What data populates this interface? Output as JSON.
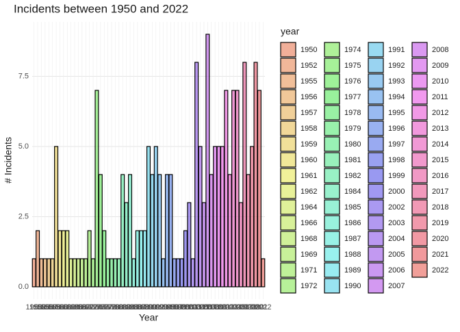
{
  "chart_data": {
    "type": "bar",
    "title": "Incidents between 1950 and 2022",
    "x_label": "Year",
    "y_label": "# Incidents",
    "legend_title": "year",
    "categories": [
      "1950",
      "1952",
      "1955",
      "1956",
      "1957",
      "1958",
      "1959",
      "1960",
      "1961",
      "1962",
      "1964",
      "1966",
      "1968",
      "1969",
      "1971",
      "1972",
      "1974",
      "1975",
      "1976",
      "1977",
      "1978",
      "1979",
      "1980",
      "1981",
      "1982",
      "1984",
      "1985",
      "1986",
      "1987",
      "1988",
      "1989",
      "1990",
      "1991",
      "1992",
      "1993",
      "1994",
      "1995",
      "1996",
      "1997",
      "1998",
      "1999",
      "2000",
      "2002",
      "2003",
      "2004",
      "2005",
      "2006",
      "2007",
      "2008",
      "2009",
      "2010",
      "2011",
      "2012",
      "2013",
      "2014",
      "2015",
      "2016",
      "2017",
      "2018",
      "2019",
      "2020",
      "2021",
      "2022"
    ],
    "values": [
      1,
      2,
      1,
      1,
      1,
      1,
      5,
      2,
      2,
      2,
      1,
      1,
      1,
      1,
      1,
      2,
      1,
      7,
      4,
      2,
      1,
      1,
      1,
      1,
      4,
      3,
      4,
      1,
      2,
      2,
      2,
      5,
      4,
      5,
      4,
      1,
      4,
      4,
      1,
      1,
      1,
      2,
      3,
      1,
      8,
      5,
      3,
      9,
      4,
      5,
      5,
      5,
      7,
      4,
      7,
      7,
      3,
      8,
      4,
      5,
      8,
      7,
      1
    ],
    "ylim": [
      -0.44,
      9.44
    ],
    "yticks": [
      {
        "value": 0,
        "label": "0.0"
      },
      2.5,
      {
        "value": 5,
        "label": "5.0"
      },
      7.5
    ],
    "grid": true,
    "legend": "right"
  }
}
